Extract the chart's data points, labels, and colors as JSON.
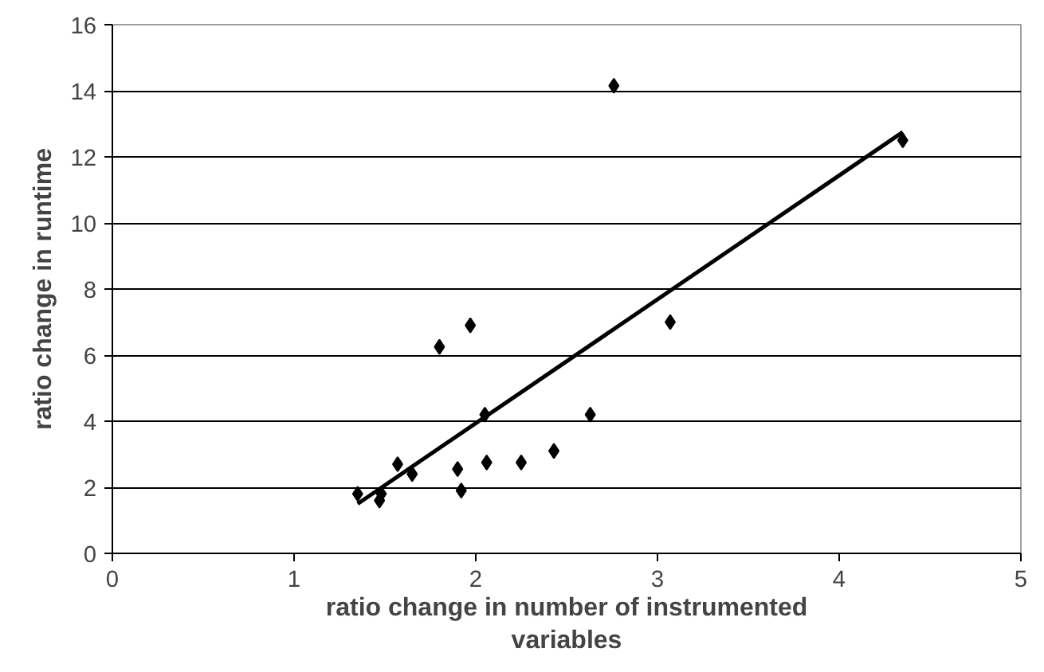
{
  "chart_data": {
    "type": "scatter",
    "xlabel": "ratio change in number of instrumented variables",
    "ylabel": "ratio change in runtime",
    "xlim": [
      0,
      5
    ],
    "ylim": [
      0,
      16
    ],
    "xticks": [
      0,
      1,
      2,
      3,
      4,
      5
    ],
    "yticks": [
      0,
      2,
      4,
      6,
      8,
      10,
      12,
      14,
      16
    ],
    "grid": "y",
    "series": [
      {
        "marker": "diamond",
        "color": "#000000",
        "x": [
          1.35,
          1.47,
          1.48,
          1.57,
          1.65,
          1.8,
          1.9,
          1.92,
          1.97,
          2.05,
          2.06,
          2.25,
          2.43,
          2.63,
          2.76,
          3.07,
          4.35
        ],
        "values": [
          1.8,
          1.6,
          1.8,
          2.7,
          2.4,
          6.25,
          2.55,
          1.9,
          6.9,
          4.2,
          2.75,
          2.75,
          3.1,
          4.2,
          14.15,
          7.0,
          12.5
        ]
      },
      {
        "type": "line",
        "color": "#000000",
        "x": [
          1.35,
          4.35
        ],
        "values": [
          1.5,
          12.75
        ]
      }
    ]
  }
}
